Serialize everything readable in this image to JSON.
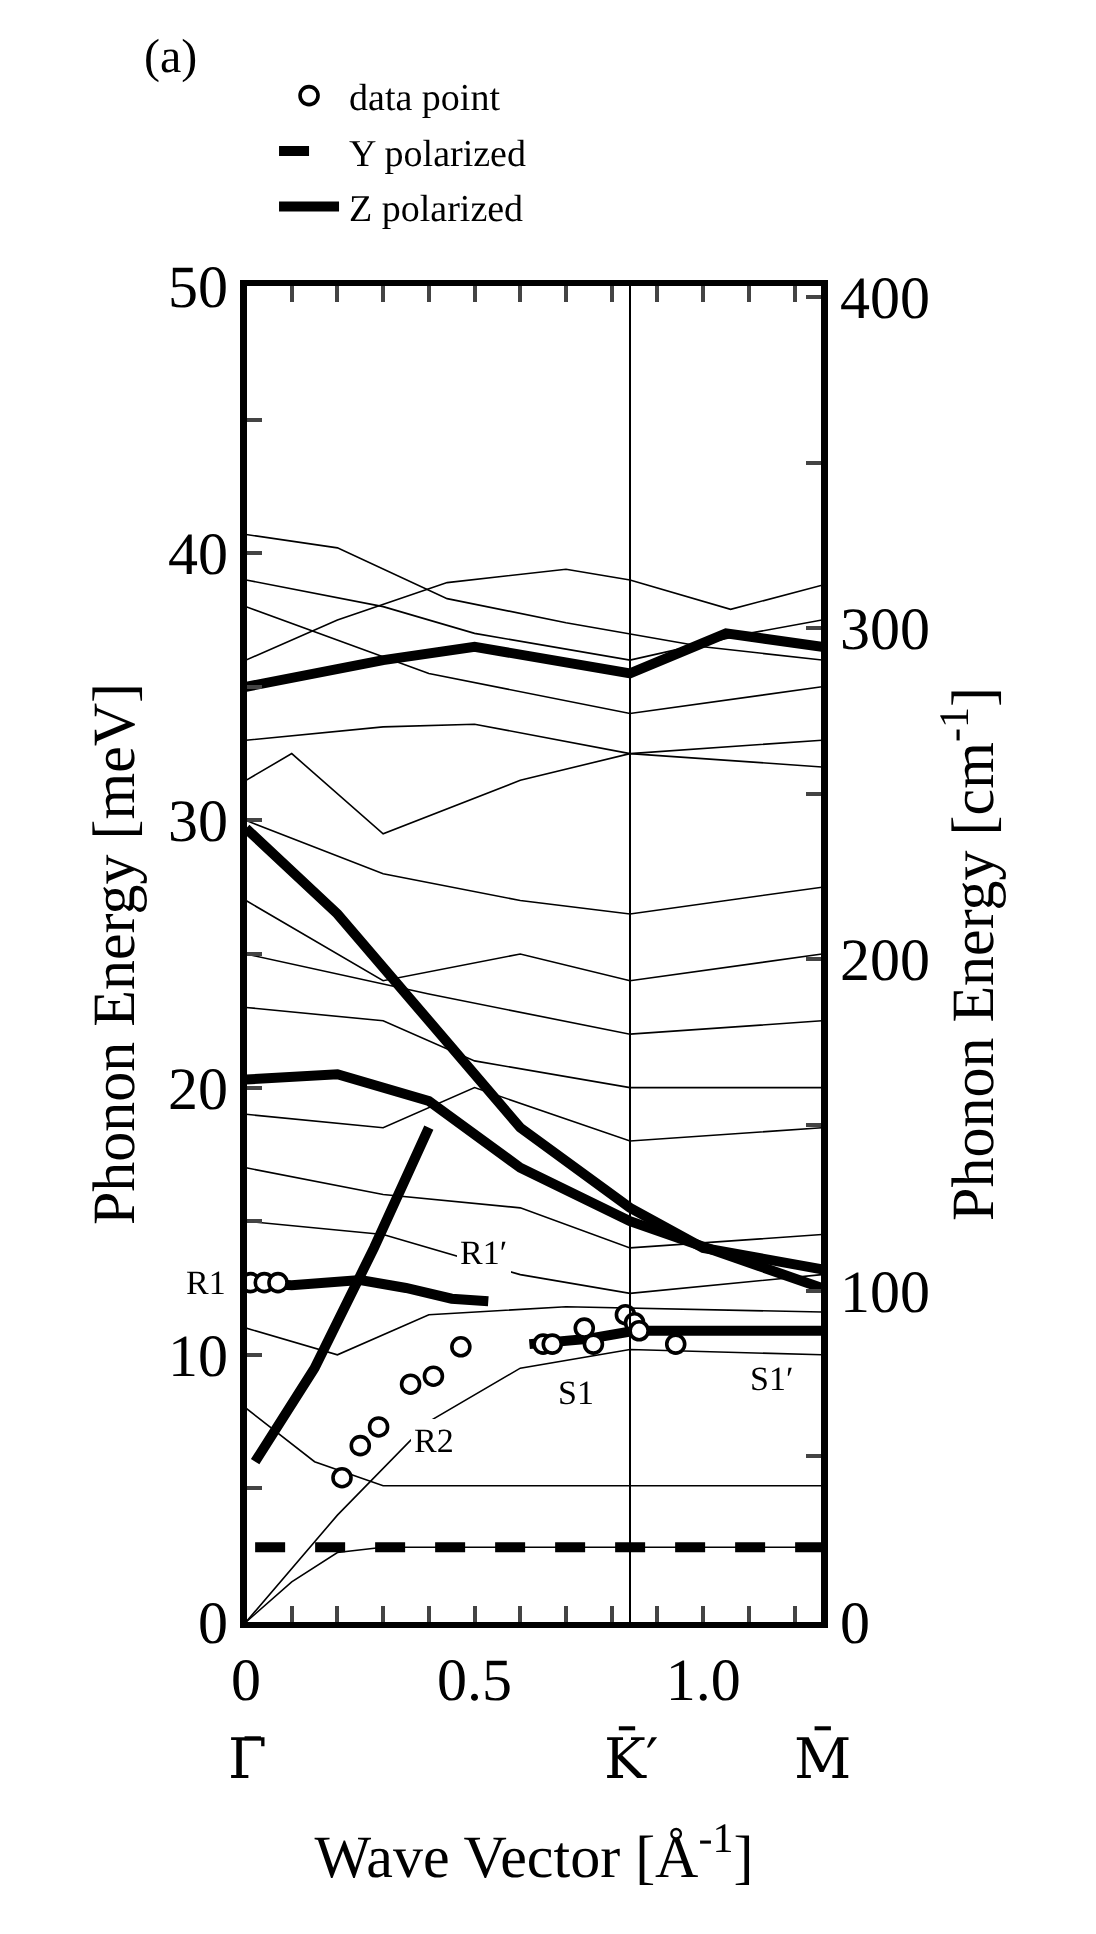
{
  "chart_data": {
    "type": "line",
    "xlabel": "Wave Vector [Å$^{-1}$]",
    "ylabel": "Phonon Energy [meV]",
    "y2label": "Phonon Energy [cm$^{-1}$]",
    "xlim": [
      0,
      1.26
    ],
    "ylim": [
      0,
      50
    ],
    "y2lim": [
      0,
      403.3
    ],
    "xticks": [
      0,
      {
        "value": 0.1,
        "label": null
      },
      {
        "value": 0.2,
        "label": null
      },
      {
        "value": 0.3,
        "label": null
      },
      {
        "value": 0.4,
        "label": null
      },
      0.5,
      {
        "value": 0.6,
        "label": null
      },
      {
        "value": 0.7,
        "label": null
      },
      {
        "value": 0.8,
        "label": null
      },
      {
        "value": 0.9,
        "label": null
      },
      {
        "value": 1.0,
        "label": "1.0"
      },
      {
        "value": 1.1,
        "label": null
      },
      {
        "value": 1.2,
        "label": null
      }
    ],
    "yticks": [
      0,
      {
        "value": 5,
        "label": null
      },
      10,
      {
        "value": 15,
        "label": null
      },
      20,
      {
        "value": 25,
        "label": null
      },
      30,
      {
        "value": 35,
        "label": null
      },
      40,
      {
        "value": 45,
        "label": null
      },
      50
    ],
    "y2ticks": [
      0,
      {
        "value": 50,
        "label": null
      },
      100,
      {
        "value": 150,
        "label": null
      },
      200,
      {
        "value": 250,
        "label": null
      },
      300,
      {
        "value": 350,
        "label": null
      },
      400
    ],
    "legend": "top",
    "grid": false,
    "ref_lines": [
      {
        "axis": "x",
        "value": 0,
        "label": "Γ̄",
        "color": "#000000"
      },
      {
        "axis": "x",
        "value": 0.84,
        "label": "K̄′",
        "color": "#000000"
      },
      {
        "axis": "x",
        "value": 1.26,
        "label": "M̄",
        "color": "#000000"
      }
    ],
    "annotations": [
      "(a)",
      {
        "text": "R1",
        "x": 0,
        "y": 12.7
      },
      {
        "text": "R1′",
        "x": 0.52,
        "y": 13.8
      },
      {
        "text": "R2",
        "x": 0.41,
        "y": 6.8
      },
      {
        "text": "S1",
        "x": 0.72,
        "y": 8.6
      },
      {
        "text": "S1′",
        "x": 1.15,
        "y": 9.1
      }
    ],
    "series": [
      {
        "color": "#000000",
        "x": [
          0,
          0.2,
          0.44,
          0.7,
          1.0,
          1.26
        ],
        "values": [
          40.7,
          40.2,
          38.3,
          37.4,
          36.5,
          36
        ]
      },
      {
        "color": "#000000",
        "x": [
          0,
          0.2,
          0.44,
          0.7,
          0.84,
          1.06,
          1.26
        ],
        "values": [
          36,
          37.5,
          38.9,
          39.4,
          39,
          37.9,
          38.8
        ]
      },
      {
        "color": "#000000",
        "x": [
          0,
          0.3,
          0.5,
          0.84,
          1.1,
          1.26
        ],
        "values": [
          39,
          38,
          37,
          36,
          37,
          37.5
        ]
      },
      {
        "color": "#000000",
        "x": [
          0,
          0.4,
          0.84,
          1.26
        ],
        "values": [
          38,
          35.5,
          34,
          35
        ]
      },
      {
        "color": "#000000",
        "x": [
          0,
          0.3,
          0.5,
          0.84,
          1.26
        ],
        "values": [
          33,
          33.5,
          33.6,
          32.5,
          32
        ]
      },
      {
        "color": "#000000",
        "x": [
          0,
          0.1,
          0.3,
          0.6,
          0.84,
          1.26
        ],
        "values": [
          31.5,
          32.5,
          29.5,
          31.5,
          32.5,
          33
        ]
      },
      {
        "color": "#000000",
        "x": [
          0,
          0.3,
          0.6,
          0.84,
          1.26
        ],
        "values": [
          30,
          28,
          27,
          26.5,
          27.5
        ]
      },
      {
        "color": "#000000",
        "x": [
          0,
          0.3,
          0.6,
          0.84,
          1.26
        ],
        "values": [
          27,
          24,
          25,
          24,
          25
        ]
      },
      {
        "color": "#000000",
        "x": [
          0,
          0.4,
          0.84,
          1.26
        ],
        "values": [
          25,
          23.5,
          22,
          22.5
        ]
      },
      {
        "color": "#000000",
        "x": [
          0,
          0.3,
          0.5,
          0.84,
          1.26
        ],
        "values": [
          23,
          22.5,
          21,
          20,
          20
        ]
      },
      {
        "color": "#000000",
        "x": [
          0,
          0.3,
          0.5,
          0.84,
          1.26
        ],
        "values": [
          19,
          18.5,
          20,
          18,
          18.5
        ]
      },
      {
        "color": "#000000",
        "x": [
          0,
          0.3,
          0.6,
          0.84,
          1.26
        ],
        "values": [
          17,
          16,
          15.5,
          14,
          14.5
        ]
      },
      {
        "color": "#000000",
        "x": [
          0,
          0.3,
          0.6,
          0.84,
          1.26
        ],
        "values": [
          15,
          14.5,
          13,
          12.3,
          13
        ]
      },
      {
        "color": "#000000",
        "x": [
          0,
          0.2,
          0.4,
          0.7,
          1.26
        ],
        "values": [
          11,
          10,
          11.5,
          11.8,
          11.6
        ]
      },
      {
        "color": "#000000",
        "x": [
          0,
          0.2,
          0.4,
          0.6,
          0.84,
          1.26
        ],
        "values": [
          0,
          4,
          7.5,
          9.5,
          10.2,
          10
        ]
      },
      {
        "color": "#000000",
        "x": [
          0,
          0.15,
          0.3,
          1.26
        ],
        "values": [
          8,
          6,
          5.1,
          5.1
        ]
      },
      {
        "color": "#000000",
        "x": [
          0,
          0.1,
          0.2,
          0.3,
          1.26
        ],
        "values": [
          0,
          1.5,
          2.6,
          2.8,
          2.8
        ]
      },
      {
        "name": "Z polarized",
        "color": "#000000",
        "line_style": "solid",
        "x": [
          0,
          0.1,
          0.25,
          0.35,
          0.45,
          0.53,
          null,
          0.02,
          0.15,
          0.28,
          0.4,
          null,
          0.62,
          0.75,
          0.85,
          1.26,
          null,
          0,
          0.2,
          0.4,
          0.6,
          0.84,
          1.0,
          1.26,
          null,
          0,
          0.2,
          0.4,
          0.6,
          0.84,
          1.26,
          null,
          0,
          0.3,
          0.5,
          0.84,
          1.05,
          1.26
        ],
        "values": [
          12.7,
          12.6,
          12.8,
          12.5,
          12.1,
          12.0,
          null,
          6.0,
          9.5,
          14,
          18.5,
          null,
          10.4,
          10.6,
          10.9,
          10.9,
          null,
          29.7,
          26.5,
          22.5,
          18.5,
          15.5,
          14,
          13.2,
          null,
          20.3,
          20.5,
          19.5,
          17,
          15,
          12.5,
          null,
          35,
          36,
          36.5,
          35.5,
          37,
          36.5
        ]
      },
      {
        "name": "Y polarized",
        "color": "#000000",
        "line_style": "dashed",
        "x": [
          0.02,
          1.26
        ],
        "values": [
          2.8,
          2.8
        ]
      },
      {
        "name": "data point",
        "type": "scatter",
        "color": "#000000",
        "marker": "circle",
        "x": [
          0.01,
          0.04,
          0.07,
          0.21,
          0.25,
          0.29,
          0.36,
          0.41,
          0.47,
          0.65,
          0.67,
          0.74,
          0.76,
          0.83,
          0.85,
          0.86,
          0.94
        ],
        "values": [
          12.7,
          12.7,
          12.7,
          5.4,
          6.6,
          7.3,
          8.9,
          9.2,
          10.3,
          10.4,
          10.4,
          11.0,
          10.4,
          11.5,
          11.2,
          10.9,
          10.4
        ]
      }
    ]
  }
}
